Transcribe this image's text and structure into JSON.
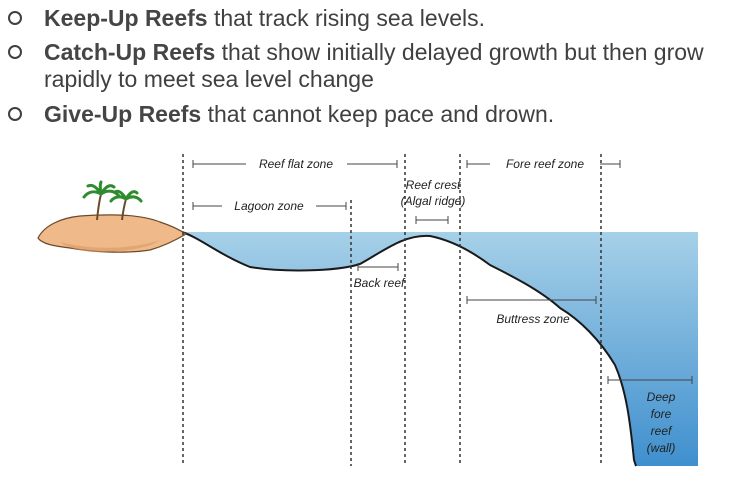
{
  "bullets": [
    {
      "term": "Keep-Up Reefs",
      "rest": " that track rising sea levels."
    },
    {
      "term": "Catch-Up Reefs",
      "rest": " that show initially delayed growth but then grow",
      "rest2": "rapidly to meet sea level change"
    },
    {
      "term": "Give-Up Reefs",
      "rest": " that cannot keep pace and drown."
    }
  ],
  "diagram": {
    "zones": {
      "reef_flat": "Reef flat zone",
      "fore_reef": "Fore reef zone",
      "lagoon": "Lagoon zone",
      "reef_crest_1": "Reef crest",
      "reef_crest_2": "(Algal ridge)",
      "back_reef": "Back reef",
      "buttress": "Buttress zone",
      "deep_1": "Deep",
      "deep_2": "fore",
      "deep_3": "reef",
      "deep_4": "(wall)"
    },
    "colors": {
      "water_top": "#a6d0e8",
      "water_deep": "#3f8fce",
      "island": "#f0b98a",
      "palm": "#2e8b2e"
    }
  }
}
